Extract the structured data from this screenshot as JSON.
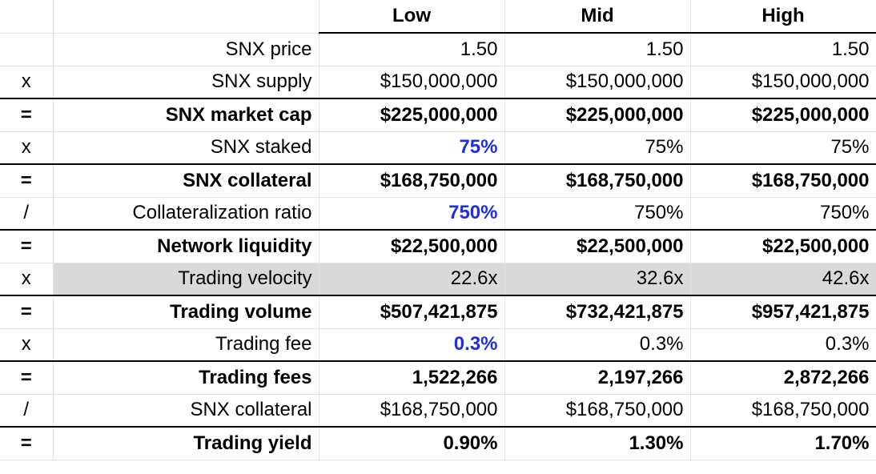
{
  "colors": {
    "input_value": "#1f2fe0",
    "shaded_row": "#d9d9d9"
  },
  "header": {
    "col_low": "Low",
    "col_mid": "Mid",
    "col_high": "High"
  },
  "rows": [
    {
      "op": "",
      "label": "SNX price",
      "low": "1.50",
      "mid": "1.50",
      "high": "1.50"
    },
    {
      "op": "x",
      "label": "SNX supply",
      "low": "$150,000,000",
      "mid": "$150,000,000",
      "high": "$150,000,000"
    },
    {
      "op": "=",
      "label": "SNX market cap",
      "low": "$225,000,000",
      "mid": "$225,000,000",
      "high": "$225,000,000"
    },
    {
      "op": "x",
      "label": "SNX staked",
      "low": "75%",
      "mid": "75%",
      "high": "75%"
    },
    {
      "op": "=",
      "label": "SNX collateral",
      "low": "$168,750,000",
      "mid": "$168,750,000",
      "high": "$168,750,000"
    },
    {
      "op": "/",
      "label": "Collateralization ratio",
      "low": "750%",
      "mid": "750%",
      "high": "750%"
    },
    {
      "op": "=",
      "label": "Network liquidity",
      "low": "$22,500,000",
      "mid": "$22,500,000",
      "high": "$22,500,000"
    },
    {
      "op": "x",
      "label": "Trading velocity",
      "low": "22.6x",
      "mid": "32.6x",
      "high": "42.6x"
    },
    {
      "op": "=",
      "label": "Trading volume",
      "low": "$507,421,875",
      "mid": "$732,421,875",
      "high": "$957,421,875"
    },
    {
      "op": "x",
      "label": "Trading fee",
      "low": "0.3%",
      "mid": "0.3%",
      "high": "0.3%"
    },
    {
      "op": "=",
      "label": "Trading fees",
      "low": "1,522,266",
      "mid": "2,197,266",
      "high": "2,872,266"
    },
    {
      "op": "/",
      "label": "SNX collateral",
      "low": "$168,750,000",
      "mid": "$168,750,000",
      "high": "$168,750,000"
    },
    {
      "op": "=",
      "label": "Trading yield",
      "low": "0.90%",
      "mid": "1.30%",
      "high": "1.70%"
    }
  ]
}
